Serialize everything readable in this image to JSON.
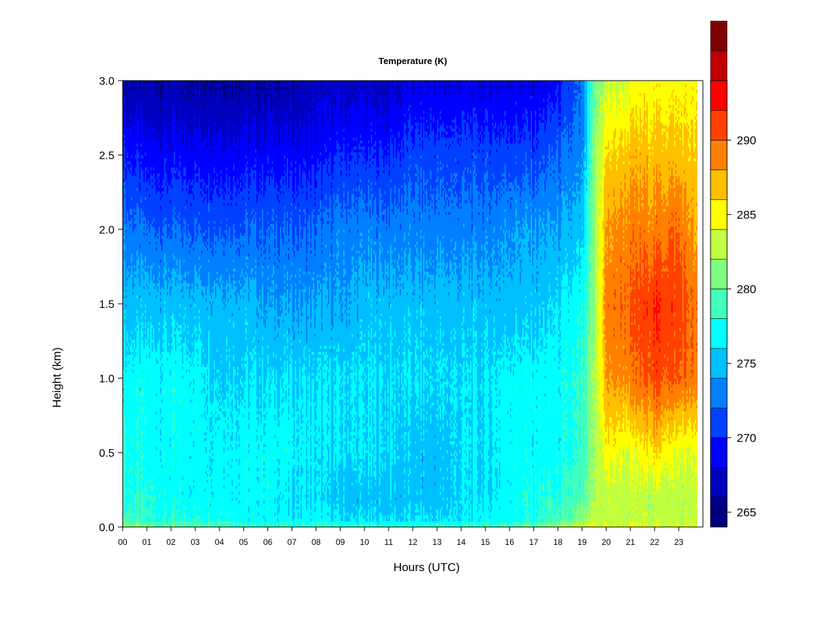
{
  "chart_data": {
    "type": "heatmap",
    "title": "Temperature (K)",
    "xlabel": "Hours (UTC)",
    "ylabel": "Height (km)",
    "xlim": [
      0,
      24
    ],
    "ylim": [
      0,
      3
    ],
    "x_ticks": [
      "00",
      "01",
      "02",
      "03",
      "04",
      "05",
      "06",
      "07",
      "08",
      "09",
      "10",
      "11",
      "12",
      "13",
      "14",
      "15",
      "16",
      "17",
      "18",
      "19",
      "20",
      "21",
      "22",
      "23"
    ],
    "y_ticks": [
      "0.0",
      "0.5",
      "1.0",
      "1.5",
      "2.0",
      "2.5",
      "3.0"
    ],
    "y_tick_values": [
      0,
      0.5,
      1.0,
      1.5,
      2.0,
      2.5,
      3.0
    ],
    "colorbar": {
      "min": 264,
      "max": 294,
      "step": 2,
      "tick_values": [
        265,
        270,
        275,
        280,
        285,
        290
      ],
      "tick_labels": [
        "265",
        "270",
        "275",
        "280",
        "285",
        "290"
      ],
      "colors": [
        "#00007F",
        "#0000BF",
        "#0000FF",
        "#0040FF",
        "#0080FF",
        "#00BFFF",
        "#00FFFF",
        "#40FFBF",
        "#80FF80",
        "#BFFF40",
        "#FFFF00",
        "#FFBF00",
        "#FF8000",
        "#FF4000",
        "#FF0000",
        "#BF0000",
        "#7F0000"
      ]
    },
    "times": [
      0,
      1,
      2,
      3,
      4,
      5,
      6,
      7,
      8,
      9,
      10,
      11,
      12,
      13,
      14,
      15,
      16,
      17,
      18,
      19,
      19.5,
      20,
      21,
      22,
      23,
      23.8
    ],
    "heights": [
      0,
      0.05,
      0.2,
      0.5,
      1.0,
      1.5,
      2.0,
      2.5,
      3.0
    ],
    "values": [
      [
        282,
        279,
        278,
        278,
        277,
        275,
        273,
        270,
        266
      ],
      [
        281,
        278,
        278,
        277,
        277,
        275,
        272,
        269,
        266
      ],
      [
        280,
        278,
        277,
        277,
        277,
        275,
        272,
        269,
        266
      ],
      [
        280,
        278,
        277,
        277,
        277,
        275,
        272,
        269,
        266
      ],
      [
        280,
        278,
        277,
        277,
        276,
        275,
        272,
        269,
        266
      ],
      [
        279,
        277,
        277,
        277,
        276,
        275,
        272,
        269,
        266
      ],
      [
        279,
        277,
        277,
        277,
        276,
        274,
        272,
        269,
        266
      ],
      [
        279,
        277,
        276,
        277,
        276,
        274,
        272,
        269,
        266
      ],
      [
        279,
        277,
        276,
        276,
        276,
        274,
        272,
        269,
        267
      ],
      [
        279,
        276,
        275,
        276,
        276,
        274,
        273,
        270,
        267
      ],
      [
        279,
        276,
        275,
        276,
        276,
        275,
        273,
        270,
        267
      ],
      [
        279,
        276,
        275,
        276,
        276,
        275,
        273,
        270,
        267
      ],
      [
        279,
        276,
        275,
        275,
        276,
        275,
        273,
        271,
        268
      ],
      [
        279,
        276,
        275,
        275,
        276,
        275,
        273,
        271,
        268
      ],
      [
        279,
        276,
        276,
        276,
        276,
        275,
        273,
        271,
        268
      ],
      [
        279,
        277,
        276,
        276,
        276,
        275,
        273,
        271,
        268
      ],
      [
        280,
        277,
        277,
        277,
        277,
        275,
        274,
        271,
        268
      ],
      [
        281,
        278,
        278,
        277,
        277,
        275,
        274,
        271,
        268
      ],
      [
        282,
        279,
        278,
        277,
        277,
        276,
        274,
        272,
        269
      ],
      [
        283,
        281,
        279,
        278,
        278,
        277,
        275,
        273,
        272
      ],
      [
        284,
        283,
        282,
        282,
        282,
        281,
        281,
        281,
        280
      ],
      [
        284,
        283,
        283,
        285,
        288,
        289,
        288,
        286,
        283
      ],
      [
        284,
        283,
        283,
        284,
        289,
        290,
        289,
        287,
        284
      ],
      [
        284,
        283,
        283,
        286,
        291,
        292,
        289,
        287,
        285
      ],
      [
        284,
        283,
        283,
        284,
        290,
        291,
        290,
        287,
        285
      ],
      [
        283,
        283,
        283,
        284,
        289,
        289,
        287,
        286,
        285
      ]
    ]
  }
}
